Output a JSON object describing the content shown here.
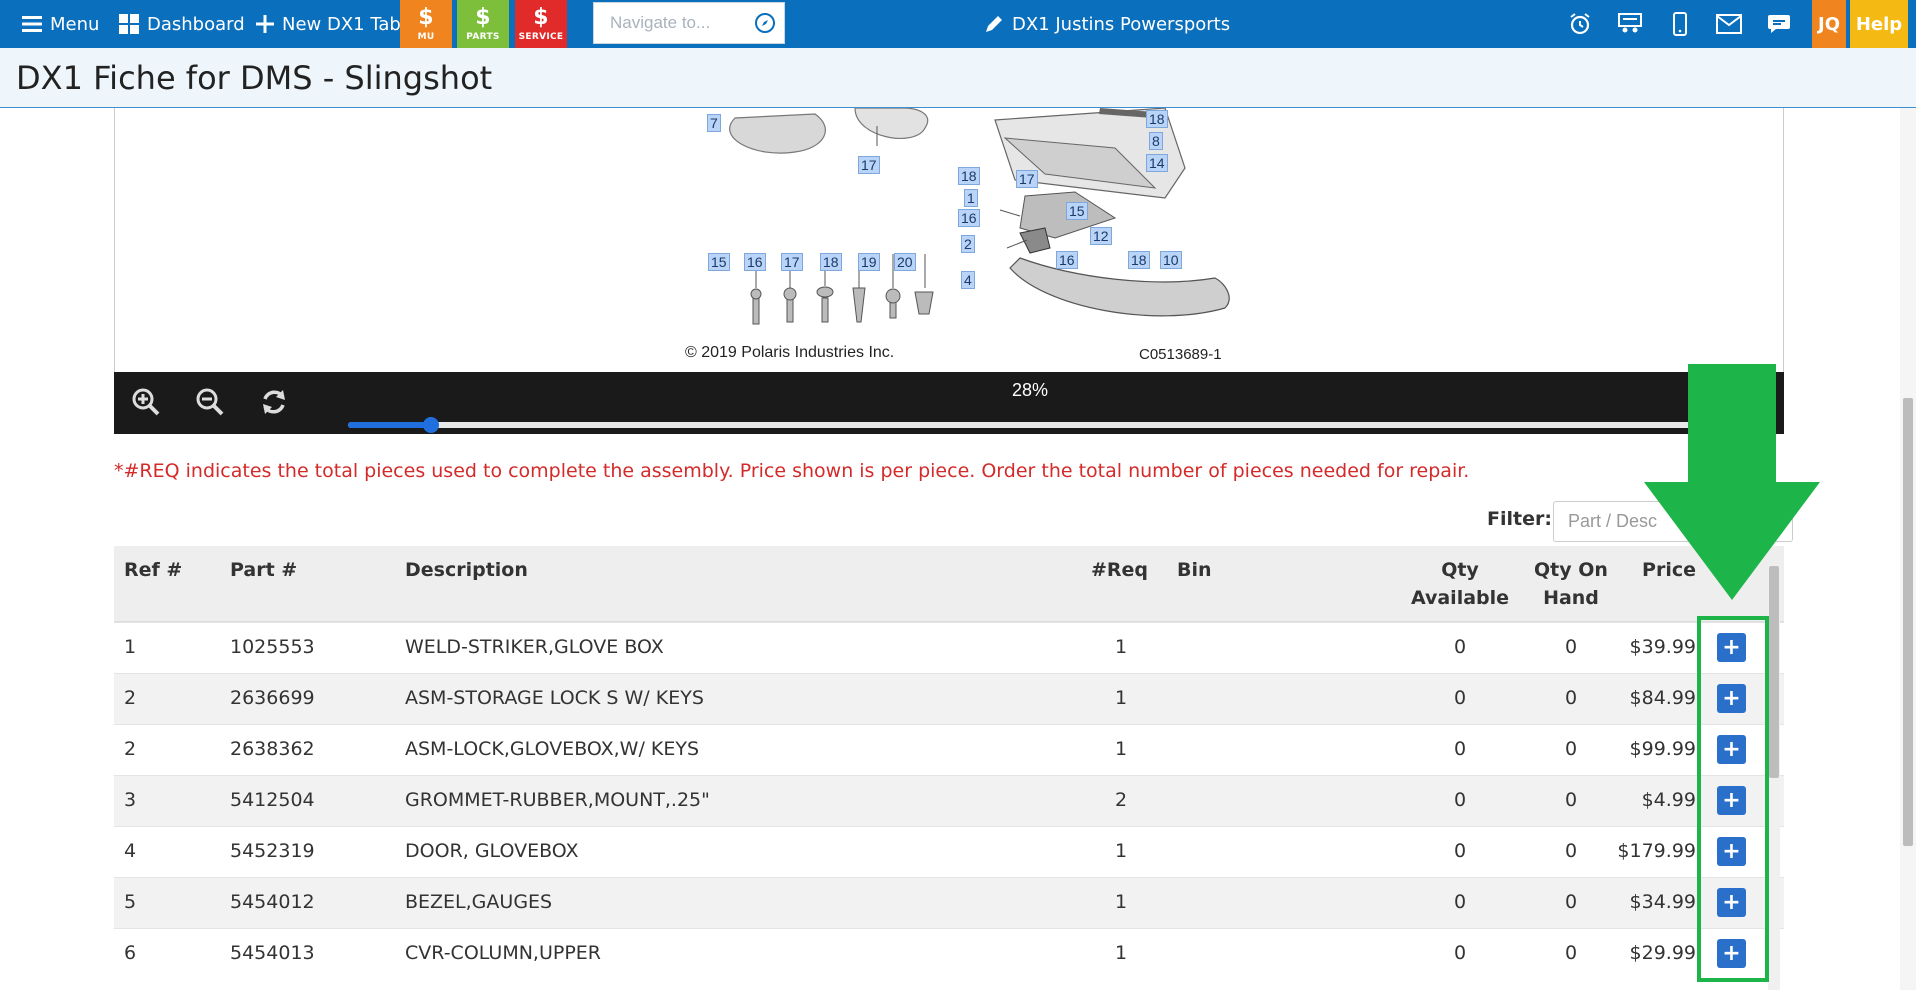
{
  "topbar": {
    "menu_label": "Menu",
    "dashboard_label": "Dashboard",
    "new_tab_label": "New DX1 Tab",
    "tiles": [
      {
        "label": "MU",
        "color": "#f0841f"
      },
      {
        "label": "PARTS",
        "color": "#7dbf3a"
      },
      {
        "label": "SERVICE",
        "color": "#e12a2a"
      }
    ],
    "navigate_placeholder": "Navigate to...",
    "dealer_name": "DX1 Justins Powersports",
    "user_initials": "JQ",
    "help_label": "Help",
    "bar_color": "#0a6fbc"
  },
  "page": {
    "title": "DX1 Fiche for DMS - Slingshot"
  },
  "diagram": {
    "callouts_top": [
      "7",
      "17",
      "18",
      "8",
      "14",
      "18",
      "17",
      "1",
      "15",
      "16",
      "12",
      "2",
      "16",
      "18",
      "10",
      "4"
    ],
    "hardware_callouts": [
      "15",
      "16",
      "17",
      "18",
      "19",
      "20"
    ],
    "copyright": "© 2019 Polaris Industries Inc.",
    "figure_id": "C0513689-1"
  },
  "viewer": {
    "zoom_label": "28%",
    "zoom_level": 0.06
  },
  "note": "*#REQ indicates the total pieces used to complete the assembly. Price shown is per piece. Order the total number of pieces needed for repair.",
  "filter": {
    "label": "Filter:",
    "placeholder": "Part / Desc"
  },
  "table": {
    "headers": {
      "ref": "Ref #",
      "part": "Part #",
      "desc": "Description",
      "req": "#Req",
      "bin": "Bin",
      "qty_avail_1": "Qty",
      "qty_avail_2": "Available",
      "qty_hand_1": "Qty On",
      "qty_hand_2": "Hand",
      "price": "Price"
    },
    "rows": [
      {
        "ref": "1",
        "part": "1025553",
        "desc": "WELD-STRIKER,GLOVE BOX",
        "req": "1",
        "bin": "",
        "qty_avail": "0",
        "qty_hand": "0",
        "price": "$39.99"
      },
      {
        "ref": "2",
        "part": "2636699",
        "desc": "ASM-STORAGE LOCK S W/ KEYS",
        "req": "1",
        "bin": "",
        "qty_avail": "0",
        "qty_hand": "0",
        "price": "$84.99"
      },
      {
        "ref": "2",
        "part": "2638362",
        "desc": "ASM-LOCK,GLOVEBOX,W/ KEYS",
        "req": "1",
        "bin": "",
        "qty_avail": "0",
        "qty_hand": "0",
        "price": "$99.99"
      },
      {
        "ref": "3",
        "part": "5412504",
        "desc": "GROMMET-RUBBER,MOUNT,.25\"",
        "req": "2",
        "bin": "",
        "qty_avail": "0",
        "qty_hand": "0",
        "price": "$4.99"
      },
      {
        "ref": "4",
        "part": "5452319",
        "desc": "DOOR, GLOVEBOX",
        "req": "1",
        "bin": "",
        "qty_avail": "0",
        "qty_hand": "0",
        "price": "$179.99"
      },
      {
        "ref": "5",
        "part": "5454012",
        "desc": "BEZEL,GAUGES",
        "req": "1",
        "bin": "",
        "qty_avail": "0",
        "qty_hand": "0",
        "price": "$34.99"
      },
      {
        "ref": "6",
        "part": "5454013",
        "desc": "CVR-COLUMN,UPPER",
        "req": "1",
        "bin": "",
        "qty_avail": "0",
        "qty_hand": "0",
        "price": "$29.99"
      }
    ],
    "add_button_label": "+"
  },
  "annotation": {
    "color": "#1db54a"
  }
}
